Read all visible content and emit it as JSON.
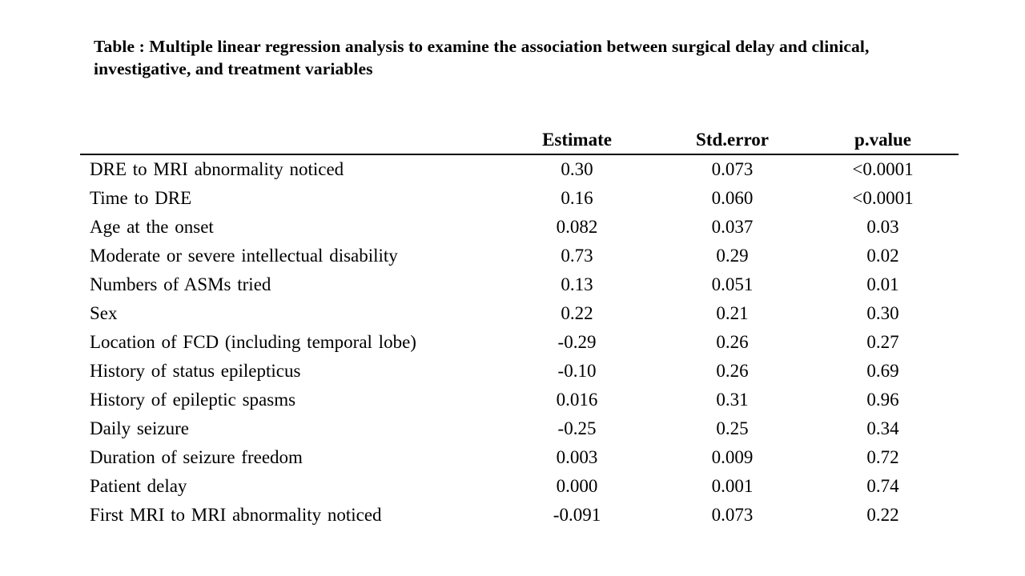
{
  "caption": "Table : Multiple linear regression analysis to examine the association between surgical delay and clinical, investigative, and treatment variables",
  "table": {
    "columns": [
      "",
      "Estimate",
      "Std.error",
      "p.value"
    ],
    "rows": [
      {
        "label": "DRE to MRI abnormality noticed",
        "estimate": "0.30",
        "std_error": "0.073",
        "p_value": "<0.0001"
      },
      {
        "label": "Time to DRE",
        "estimate": "0.16",
        "std_error": "0.060",
        "p_value": "<0.0001"
      },
      {
        "label": "Age at the onset",
        "estimate": "0.082",
        "std_error": "0.037",
        "p_value": "0.03"
      },
      {
        "label": "Moderate or severe intellectual disability",
        "estimate": "0.73",
        "std_error": "0.29",
        "p_value": "0.02"
      },
      {
        "label": "Numbers of ASMs tried",
        "estimate": "0.13",
        "std_error": "0.051",
        "p_value": "0.01"
      },
      {
        "label": "Sex",
        "estimate": "0.22",
        "std_error": "0.21",
        "p_value": "0.30"
      },
      {
        "label": "Location of FCD (including temporal lobe)",
        "estimate": "-0.29",
        "std_error": "0.26",
        "p_value": "0.27"
      },
      {
        "label": "History of status epilepticus",
        "estimate": "-0.10",
        "std_error": "0.26",
        "p_value": "0.69"
      },
      {
        "label": "History of epileptic spasms",
        "estimate": "0.016",
        "std_error": "0.31",
        "p_value": "0.96"
      },
      {
        "label": "Daily seizure",
        "estimate": "-0.25",
        "std_error": "0.25",
        "p_value": "0.34"
      },
      {
        "label": "Duration of seizure freedom",
        "estimate": "0.003",
        "std_error": "0.009",
        "p_value": "0.72"
      },
      {
        "label": "Patient delay",
        "estimate": "0.000",
        "std_error": "0.001",
        "p_value": "0.74"
      },
      {
        "label": "First MRI to MRI abnormality noticed",
        "estimate": "-0.091",
        "std_error": "0.073",
        "p_value": "0.22"
      }
    ],
    "colors": {
      "text": "#000000",
      "background": "#ffffff",
      "rule": "#000000"
    }
  }
}
